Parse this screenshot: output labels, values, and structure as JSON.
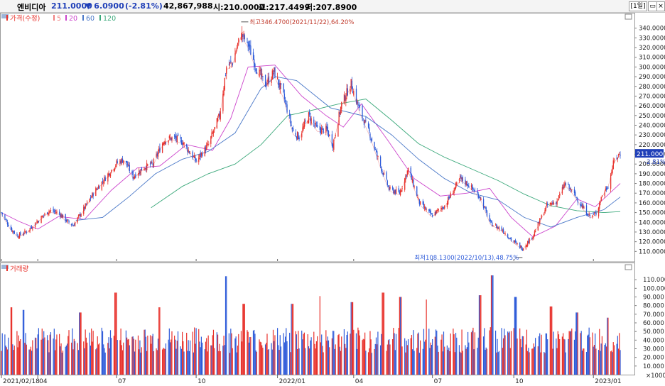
{
  "header": {
    "name": "엔비디아",
    "price": "211.0000",
    "change": "▼ 6.0900",
    "change_pct": "(-2.81%)",
    "volume": "42,867,988",
    "open": "시:210.0000",
    "high": "고:217.4499",
    "low": "저:207.8900",
    "period_button": "[1일]"
  },
  "colors": {
    "up": "#e8312b",
    "down": "#2e5bd9",
    "ma5": "#f08080",
    "ma20": "#cc44cc",
    "ma60": "#4a78c8",
    "ma120": "#3aa87a",
    "price_tag": "#1f3fb8",
    "header_price": "#1f3fb8"
  },
  "chart_data": [
    {
      "type": "candlestick",
      "legend": [
        {
          "label": "가격(수정)",
          "color": "#e8312b"
        },
        {
          "label": "5",
          "color": "#f08080"
        },
        {
          "label": "20",
          "color": "#cc44cc"
        },
        {
          "label": "60",
          "color": "#4a78c8"
        },
        {
          "label": "120",
          "color": "#3aa87a"
        }
      ],
      "ylim": [
        100,
        350
      ],
      "y_ticks": [
        "110.0000",
        "120.0000",
        "130.0000",
        "140.0000",
        "150.0000",
        "160.0000",
        "170.0000",
        "180.0000",
        "190.0000",
        "200.0000",
        "210.0000",
        "220.0000",
        "230.0000",
        "240.0000",
        "250.0000",
        "260.0000",
        "270.0000",
        "280.0000",
        "290.0000",
        "300.0000",
        "310.0000",
        "320.0000",
        "330.0000",
        "340.0000"
      ],
      "x_labels": [
        "2021/02/18",
        "04",
        "07",
        "10",
        "2022/01",
        "04",
        "07",
        "10",
        "2023/01"
      ],
      "current_price_tag": "211.0000",
      "current_change_tag": "-2.81%",
      "high_annotation": "최고346.4700(2021/11/22),64.20%",
      "low_annotation": "최저108.1300(2022/10/13),48.75%",
      "price_path": [
        [
          "2021-02-18",
          150
        ],
        [
          "2021-03-01",
          133
        ],
        [
          "2021-03-09",
          126
        ],
        [
          "2021-03-20",
          131
        ],
        [
          "2021-04-05",
          145
        ],
        [
          "2021-04-14",
          152
        ],
        [
          "2021-04-25",
          150
        ],
        [
          "2021-05-05",
          141
        ],
        [
          "2021-05-12",
          137
        ],
        [
          "2021-05-25",
          155
        ],
        [
          "2021-06-05",
          171
        ],
        [
          "2021-06-20",
          188
        ],
        [
          "2021-07-01",
          201
        ],
        [
          "2021-07-10",
          205
        ],
        [
          "2021-07-20",
          187
        ],
        [
          "2021-08-02",
          197
        ],
        [
          "2021-08-12",
          200
        ],
        [
          "2021-08-25",
          225
        ],
        [
          "2021-09-05",
          227
        ],
        [
          "2021-09-15",
          223
        ],
        [
          "2021-10-01",
          203
        ],
        [
          "2021-10-15",
          220
        ],
        [
          "2021-10-28",
          250
        ],
        [
          "2021-11-05",
          300
        ],
        [
          "2021-11-12",
          305
        ],
        [
          "2021-11-22",
          335
        ],
        [
          "2021-11-30",
          323
        ],
        [
          "2021-12-10",
          298
        ],
        [
          "2021-12-20",
          282
        ],
        [
          "2021-12-30",
          295
        ],
        [
          "2022-01-10",
          270
        ],
        [
          "2022-01-21",
          233
        ],
        [
          "2022-01-28",
          228
        ],
        [
          "2022-02-08",
          250
        ],
        [
          "2022-02-18",
          236
        ],
        [
          "2022-03-01",
          235
        ],
        [
          "2022-03-08",
          220
        ],
        [
          "2022-03-18",
          262
        ],
        [
          "2022-03-29",
          283
        ],
        [
          "2022-04-08",
          255
        ],
        [
          "2022-04-20",
          230
        ],
        [
          "2022-05-02",
          198
        ],
        [
          "2022-05-12",
          174
        ],
        [
          "2022-05-24",
          170
        ],
        [
          "2022-06-03",
          195
        ],
        [
          "2022-06-16",
          160
        ],
        [
          "2022-06-30",
          147
        ],
        [
          "2022-07-15",
          157
        ],
        [
          "2022-08-02",
          185
        ],
        [
          "2022-08-10",
          180
        ],
        [
          "2022-08-25",
          166
        ],
        [
          "2022-09-06",
          139
        ],
        [
          "2022-09-20",
          132
        ],
        [
          "2022-09-30",
          122
        ],
        [
          "2022-10-13",
          113
        ],
        [
          "2022-10-25",
          126
        ],
        [
          "2022-11-10",
          157
        ],
        [
          "2022-11-22",
          162
        ],
        [
          "2022-12-01",
          180
        ],
        [
          "2022-12-10",
          171
        ],
        [
          "2022-12-22",
          155
        ],
        [
          "2022-12-30",
          146
        ],
        [
          "2023-01-06",
          149
        ],
        [
          "2023-01-13",
          168
        ],
        [
          "2023-01-20",
          178
        ],
        [
          "2023-01-27",
          204
        ],
        [
          "2023-02-03",
          211
        ]
      ],
      "ma_paths": {
        "20": [
          [
            "2021-02-18",
            150
          ],
          [
            "2021-03-10",
            141
          ],
          [
            "2021-04-01",
            133
          ],
          [
            "2021-04-25",
            146
          ],
          [
            "2021-05-25",
            143
          ],
          [
            "2021-06-25",
            173
          ],
          [
            "2021-07-25",
            196
          ],
          [
            "2021-08-20",
            198
          ],
          [
            "2021-09-20",
            220
          ],
          [
            "2021-10-20",
            214
          ],
          [
            "2021-11-10",
            247
          ],
          [
            "2021-11-30",
            300
          ],
          [
            "2021-12-31",
            302
          ],
          [
            "2022-01-31",
            270
          ],
          [
            "2022-02-28",
            250
          ],
          [
            "2022-03-20",
            238
          ],
          [
            "2022-04-10",
            262
          ],
          [
            "2022-05-10",
            225
          ],
          [
            "2022-06-10",
            185
          ],
          [
            "2022-07-10",
            167
          ],
          [
            "2022-08-10",
            170
          ],
          [
            "2022-09-05",
            175
          ],
          [
            "2022-09-30",
            145
          ],
          [
            "2022-10-25",
            125
          ],
          [
            "2022-11-20",
            136
          ],
          [
            "2022-12-15",
            164
          ],
          [
            "2023-01-05",
            156
          ],
          [
            "2023-02-03",
            180
          ]
        ],
        "60": [
          [
            "2021-05-15",
            142
          ],
          [
            "2021-06-15",
            145
          ],
          [
            "2021-07-15",
            166
          ],
          [
            "2021-08-15",
            190
          ],
          [
            "2021-09-15",
            205
          ],
          [
            "2021-10-15",
            213
          ],
          [
            "2021-11-15",
            232
          ],
          [
            "2021-12-15",
            278
          ],
          [
            "2022-01-01",
            290
          ],
          [
            "2022-01-25",
            286
          ],
          [
            "2022-03-05",
            258
          ],
          [
            "2022-04-15",
            249
          ],
          [
            "2022-05-15",
            230
          ],
          [
            "2022-06-15",
            205
          ],
          [
            "2022-07-15",
            185
          ],
          [
            "2022-08-15",
            170
          ],
          [
            "2022-09-15",
            163
          ],
          [
            "2022-10-15",
            145
          ],
          [
            "2022-11-15",
            135
          ],
          [
            "2022-12-15",
            145
          ],
          [
            "2023-01-15",
            153
          ],
          [
            "2023-02-03",
            166
          ]
        ],
        "120": [
          [
            "2021-08-10",
            155
          ],
          [
            "2021-09-15",
            177
          ],
          [
            "2021-10-15",
            190
          ],
          [
            "2021-11-15",
            200
          ],
          [
            "2021-12-15",
            220
          ],
          [
            "2022-01-15",
            250
          ],
          [
            "2022-02-15",
            256
          ],
          [
            "2022-03-15",
            262
          ],
          [
            "2022-04-15",
            267
          ],
          [
            "2022-05-15",
            245
          ],
          [
            "2022-06-15",
            221
          ],
          [
            "2022-07-15",
            207
          ],
          [
            "2022-08-15",
            195
          ],
          [
            "2022-09-15",
            183
          ],
          [
            "2022-10-15",
            169
          ],
          [
            "2022-11-15",
            157
          ],
          [
            "2022-12-15",
            152
          ],
          [
            "2023-01-15",
            150
          ],
          [
            "2023-02-03",
            151
          ]
        ]
      }
    },
    {
      "type": "bar",
      "legend": [
        {
          "label": "거래량",
          "color": "#e8312b"
        }
      ],
      "ylim": [
        0,
        120
      ],
      "y_ticks": [
        "10.000",
        "20.000",
        "30.000",
        "40.000",
        "50.000",
        "60.000",
        "70.000",
        "80.000",
        "90.000",
        "100.000",
        "110.000"
      ],
      "unit": "×1000",
      "x_labels": [
        "2021/02/18",
        "04",
        "07",
        "10",
        "2022/01",
        "04",
        "07",
        "10",
        "2023/01"
      ],
      "volume_peaks": [
        [
          "2021-03-01",
          78
        ],
        [
          "2021-03-15",
          75
        ],
        [
          "2021-05-20",
          72
        ],
        [
          "2021-06-30",
          95
        ],
        [
          "2021-08-20",
          78
        ],
        [
          "2021-11-05",
          114
        ],
        [
          "2021-11-25",
          82
        ],
        [
          "2022-01-20",
          82
        ],
        [
          "2022-02-20",
          91
        ],
        [
          "2022-03-30",
          84
        ],
        [
          "2022-05-05",
          95
        ],
        [
          "2022-05-25",
          90
        ],
        [
          "2022-06-25",
          87
        ],
        [
          "2022-08-25",
          92
        ],
        [
          "2022-09-08",
          115
        ],
        [
          "2022-10-05",
          90
        ],
        [
          "2022-11-15",
          79
        ],
        [
          "2022-12-15",
          72
        ],
        [
          "2023-01-20",
          66
        ]
      ]
    }
  ]
}
